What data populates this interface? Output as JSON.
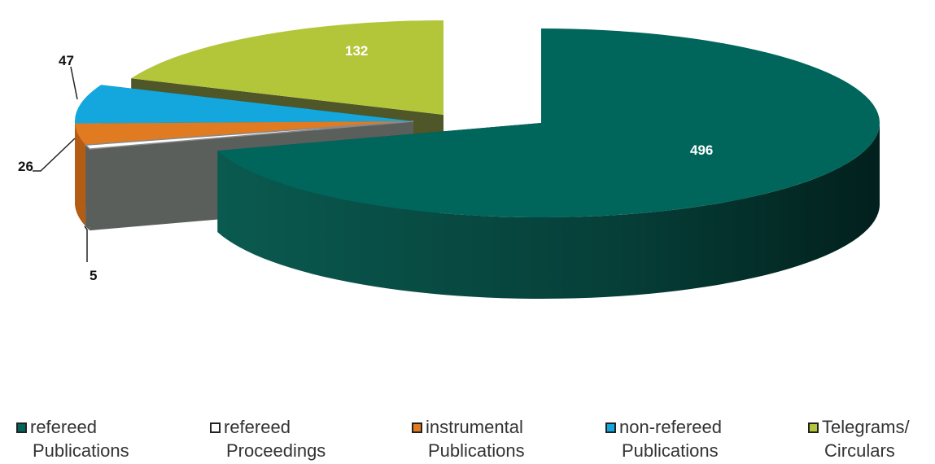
{
  "chart_data": {
    "type": "pie",
    "categories": [
      "refereed Publications",
      "refereed Proceedings",
      "instrumental Publications",
      "non-refereed Publications",
      "Telegrams/ Circulars"
    ],
    "values": [
      496,
      5,
      26,
      47,
      132
    ],
    "data_labels": [
      "496",
      "5",
      "26",
      "47",
      "132"
    ],
    "colors": [
      "#00665c",
      "#ffffff",
      "#e07b22",
      "#13a7dd",
      "#b3c63a"
    ],
    "title": "",
    "legend_position": "bottom",
    "legend": [
      {
        "line1": "refereed",
        "line2": "Publications"
      },
      {
        "line1": "refereed",
        "line2": "Proceedings"
      },
      {
        "line1": "instrumental",
        "line2": "Publications"
      },
      {
        "line1": "non-refereed",
        "line2": "Publications"
      },
      {
        "line1": "Telegrams/",
        "line2": "Circulars"
      }
    ]
  }
}
